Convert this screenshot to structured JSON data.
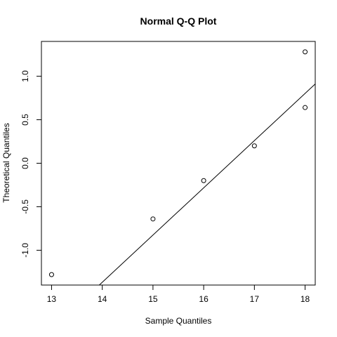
{
  "chart_data": {
    "type": "scatter",
    "title": "Normal Q-Q Plot",
    "xlabel": "Sample Quantiles",
    "ylabel": "Theoretical Quantiles",
    "xlim": [
      12.8,
      18.2
    ],
    "ylim": [
      -1.4,
      1.4
    ],
    "x_ticks": [
      13,
      14,
      15,
      16,
      17,
      18
    ],
    "x_tick_labels": [
      "13",
      "14",
      "15",
      "16",
      "17",
      "18"
    ],
    "y_ticks": [
      -1.0,
      -0.5,
      0.0,
      0.5,
      1.0
    ],
    "y_tick_labels": [
      "-1.0",
      "-0.5",
      "0.0",
      "0.5",
      "1.0"
    ],
    "points": [
      {
        "x": 13,
        "y": -1.28
      },
      {
        "x": 15,
        "y": -0.64
      },
      {
        "x": 16,
        "y": -0.2
      },
      {
        "x": 17,
        "y": 0.2
      },
      {
        "x": 18,
        "y": 0.64
      },
      {
        "x": 18,
        "y": 1.28
      }
    ],
    "reference_line": {
      "x1": 13.941,
      "y1": -1.4,
      "x2": 18.2,
      "y2": 0.911
    },
    "grid": false,
    "legend": "none"
  }
}
